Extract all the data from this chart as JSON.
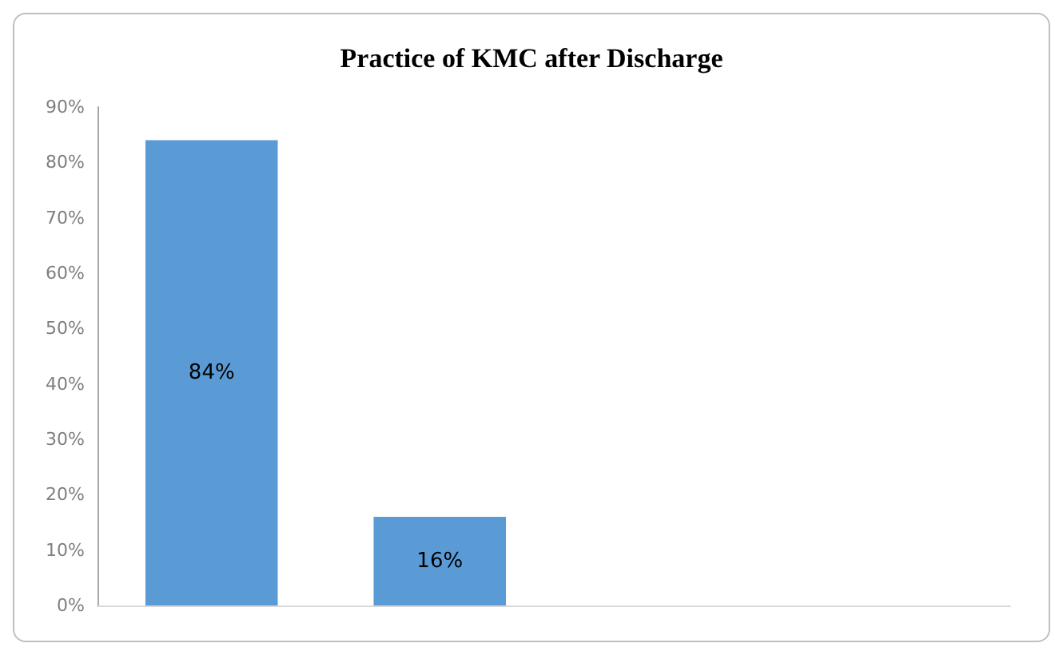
{
  "chart_data": {
    "type": "bar",
    "title": "Practice of KMC after Discharge",
    "categories": [
      null,
      null,
      null,
      null
    ],
    "values": [
      84,
      16,
      null,
      null
    ],
    "value_labels": [
      "84%",
      "16%",
      null,
      null
    ],
    "color": "#5b9bd5",
    "ylim": [
      0,
      90
    ],
    "yticks": [
      {
        "value": 0,
        "label": "0%"
      },
      {
        "value": 10,
        "label": "10%"
      },
      {
        "value": 20,
        "label": "20%"
      },
      {
        "value": 30,
        "label": "30%"
      },
      {
        "value": 40,
        "label": "40%"
      },
      {
        "value": 50,
        "label": "50%"
      },
      {
        "value": 60,
        "label": "60%"
      },
      {
        "value": 70,
        "label": "70%"
      },
      {
        "value": 80,
        "label": "80%"
      },
      {
        "value": 90,
        "label": "90%"
      }
    ],
    "grid": false
  }
}
